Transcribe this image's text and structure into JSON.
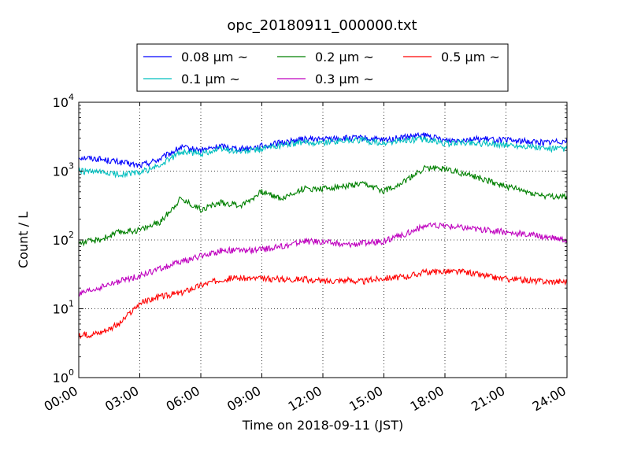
{
  "chart_data": {
    "type": "line",
    "title": "opc_20180911_000000.txt",
    "xlabel": "Time on 2018-09-11 (JST)",
    "ylabel": "Count / L",
    "x_ticks": [
      "00:00",
      "03:00",
      "06:00",
      "09:00",
      "12:00",
      "15:00",
      "18:00",
      "21:00",
      "24:00"
    ],
    "xlim_hours": [
      0,
      24
    ],
    "y_scale": "log",
    "ylim": [
      1,
      10000
    ],
    "y_ticks": [
      {
        "base": "10",
        "exp": "0"
      },
      {
        "base": "10",
        "exp": "1"
      },
      {
        "base": "10",
        "exp": "2"
      },
      {
        "base": "10",
        "exp": "3"
      },
      {
        "base": "10",
        "exp": "4"
      }
    ],
    "grid": true,
    "legend_position": "top",
    "x": [
      0,
      1,
      2,
      3,
      4,
      5,
      6,
      7,
      8,
      9,
      10,
      11,
      12,
      13,
      14,
      15,
      16,
      17,
      18,
      19,
      20,
      21,
      22,
      23,
      24
    ],
    "series": [
      {
        "name": "0.08 μm ~",
        "color": "#0000ff",
        "values": [
          1600,
          1500,
          1350,
          1200,
          1500,
          2200,
          2000,
          2300,
          2100,
          2300,
          2600,
          2900,
          2900,
          3000,
          3000,
          2800,
          3100,
          3300,
          2800,
          2900,
          2900,
          2800,
          2700,
          2600,
          2800
        ]
      },
      {
        "name": "0.1 μm ~",
        "color": "#00bfbf",
        "values": [
          1000,
          950,
          900,
          950,
          1200,
          1900,
          1800,
          2100,
          1900,
          2100,
          2400,
          2600,
          2600,
          2800,
          2800,
          2500,
          2800,
          2900,
          2500,
          2600,
          2500,
          2400,
          2300,
          2100,
          2100
        ]
      },
      {
        "name": "0.2 μm ~",
        "color": "#008000",
        "values": [
          90,
          100,
          130,
          140,
          180,
          400,
          280,
          350,
          320,
          500,
          400,
          550,
          560,
          600,
          640,
          520,
          700,
          1100,
          1100,
          900,
          750,
          600,
          500,
          430,
          420
        ]
      },
      {
        "name": "0.3 μm ~",
        "color": "#bf00bf",
        "values": [
          16,
          20,
          25,
          30,
          38,
          48,
          58,
          70,
          70,
          72,
          80,
          95,
          95,
          85,
          90,
          95,
          120,
          160,
          160,
          150,
          140,
          130,
          120,
          110,
          100
        ]
      },
      {
        "name": "0.5 μm ~",
        "color": "#ff0000",
        "values": [
          4,
          4.5,
          6,
          12,
          15,
          17,
          22,
          27,
          28,
          27,
          27,
          27,
          25,
          26,
          25,
          28,
          29,
          34,
          35,
          34,
          30,
          27,
          26,
          25,
          25
        ]
      }
    ]
  }
}
